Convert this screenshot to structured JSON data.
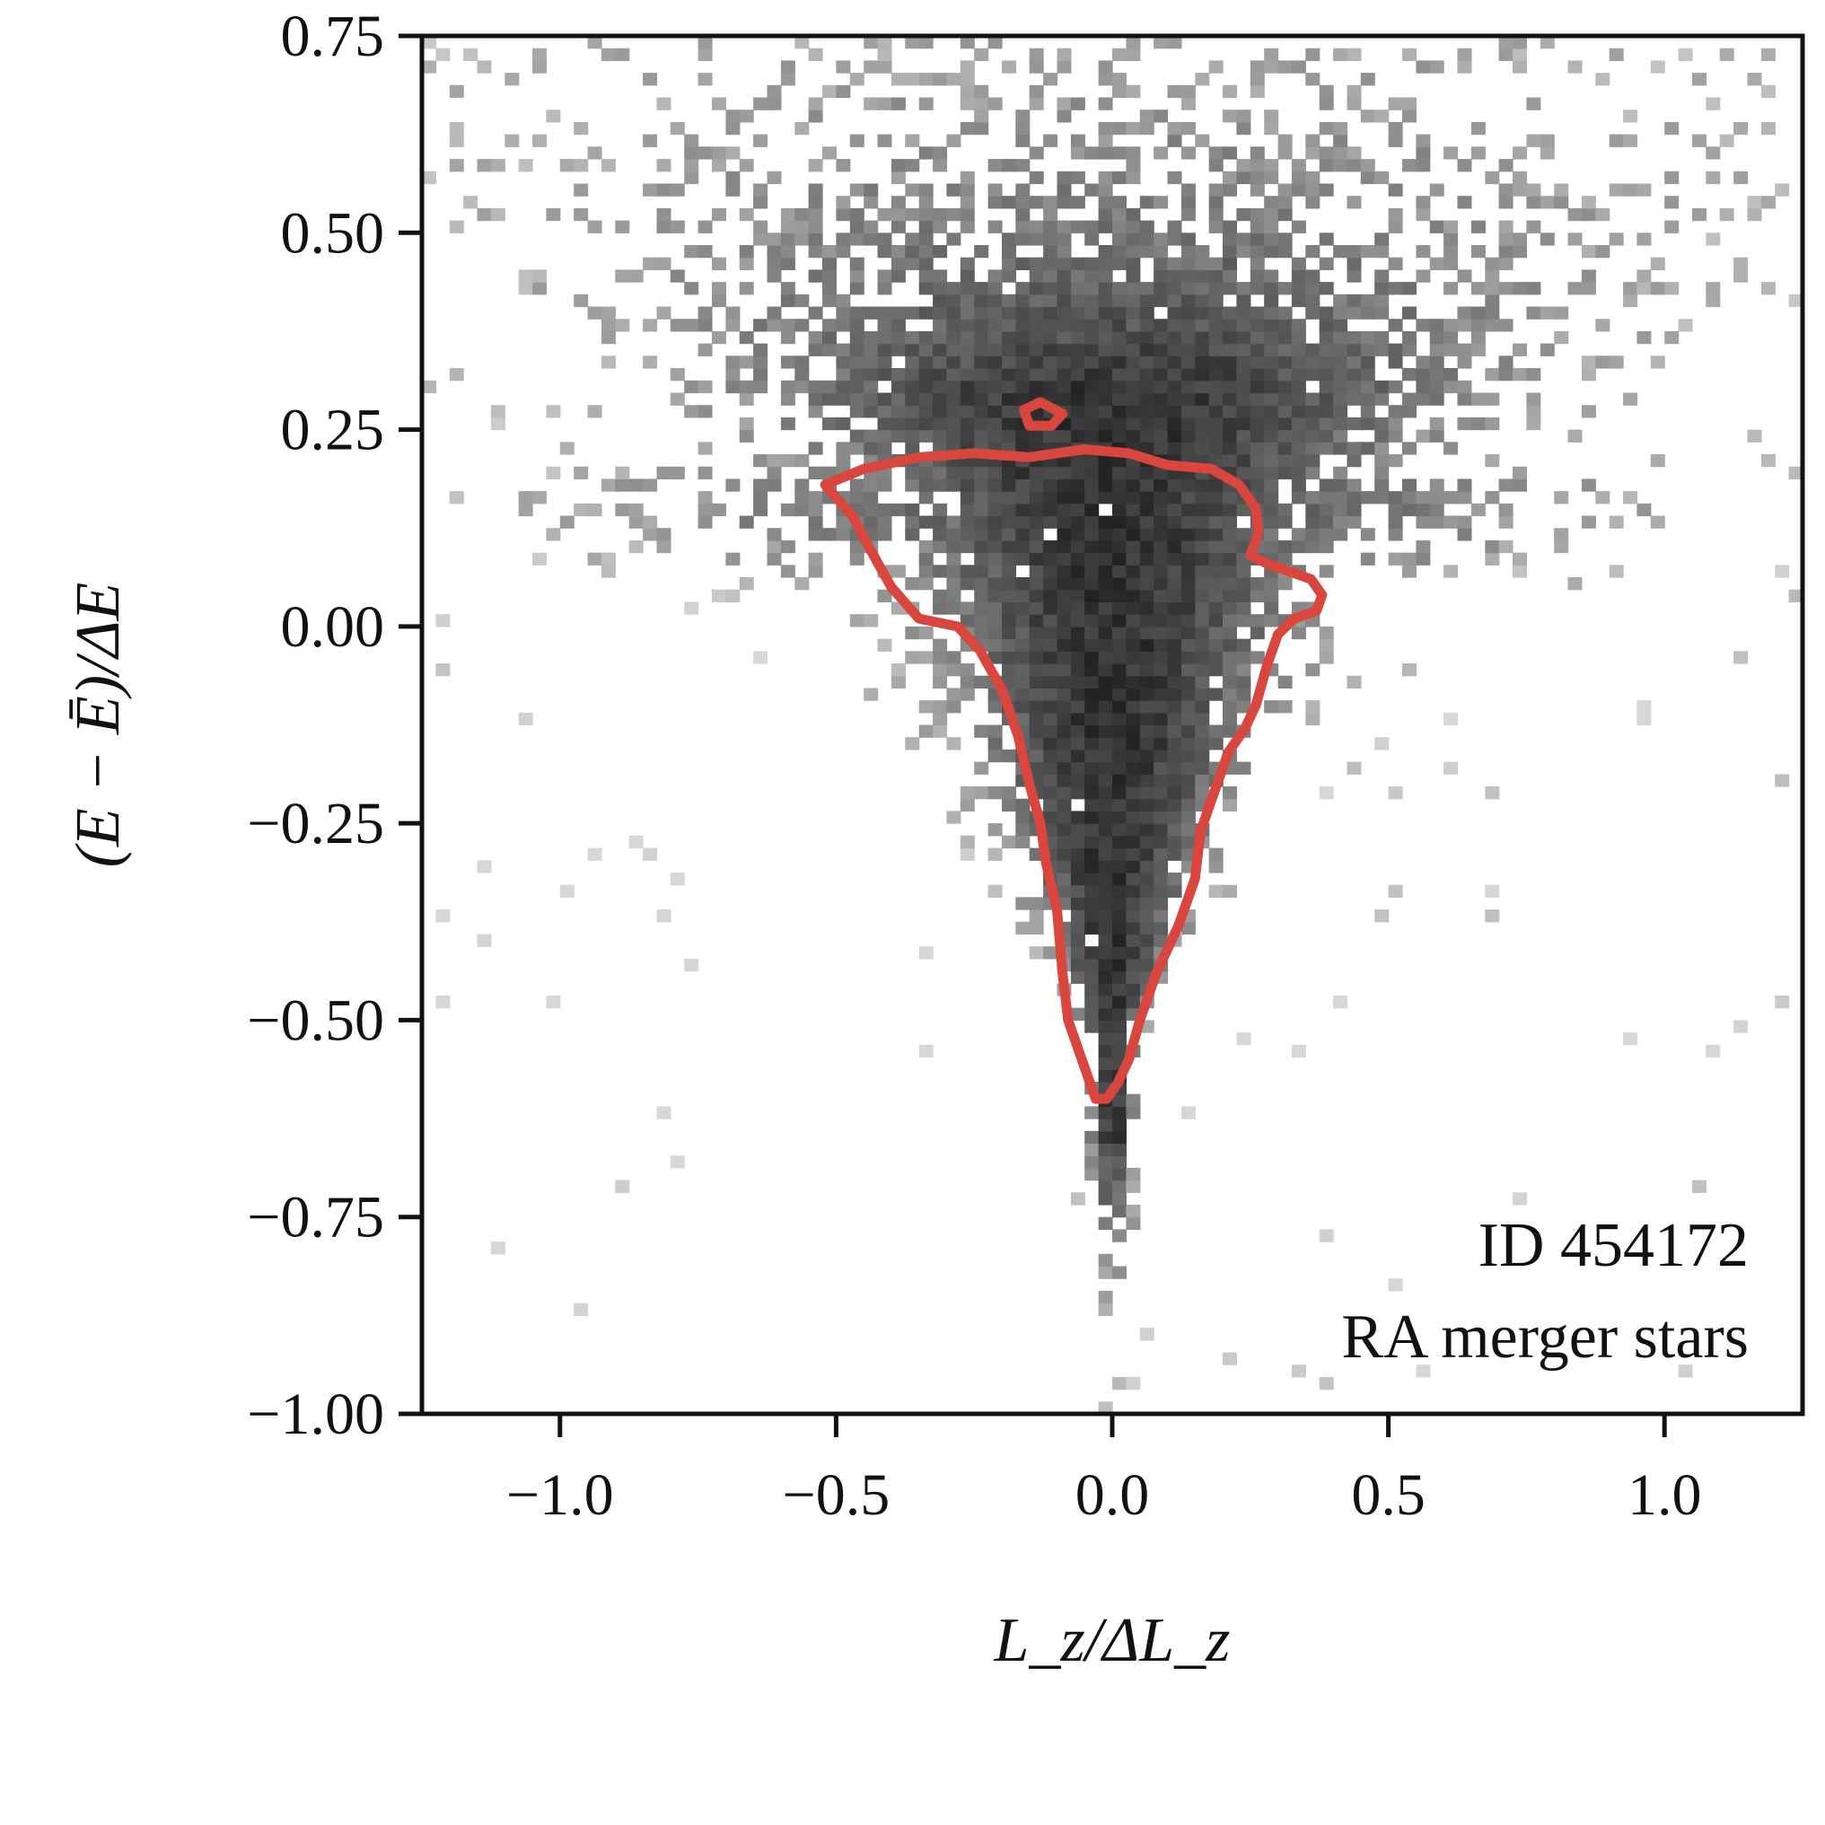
{
  "chart_data": {
    "type": "heatmap",
    "title": "",
    "xlabel": "L_z/ΔL_z",
    "ylabel": "(E − Ē)/ΔE",
    "xlim": [
      -1.25,
      1.25
    ],
    "ylim": [
      -1.0,
      0.75
    ],
    "xticks": [
      -1.0,
      -0.5,
      0.0,
      0.5,
      1.0
    ],
    "xtick_labels": [
      "−1.0",
      "−0.5",
      "0.0",
      "0.5",
      "1.0"
    ],
    "yticks": [
      0.75,
      0.5,
      0.25,
      0.0,
      -0.25,
      -0.5,
      -0.75,
      -1.0
    ],
    "ytick_labels": [
      "0.75",
      "0.50",
      "0.25",
      "0.00",
      "−0.25",
      "−0.50",
      "−0.75",
      "−1.00"
    ],
    "grid": false,
    "colormap": "greys",
    "contour_color": "#d9463e",
    "density_description": "2D histogram of star counts; dense core centred at Lz≈0, E≈−0.1 forming an inverted triangle widening toward higher energy",
    "contour": [
      [
        -0.52,
        0.18
      ],
      [
        -0.45,
        0.2
      ],
      [
        -0.35,
        0.215
      ],
      [
        -0.25,
        0.22
      ],
      [
        -0.15,
        0.215
      ],
      [
        -0.05,
        0.225
      ],
      [
        0.03,
        0.22
      ],
      [
        0.1,
        0.205
      ],
      [
        0.18,
        0.2
      ],
      [
        0.23,
        0.18
      ],
      [
        0.26,
        0.15
      ],
      [
        0.265,
        0.12
      ],
      [
        0.25,
        0.09
      ],
      [
        0.28,
        0.08
      ],
      [
        0.32,
        0.07
      ],
      [
        0.36,
        0.06
      ],
      [
        0.38,
        0.04
      ],
      [
        0.37,
        0.02
      ],
      [
        0.33,
        0.01
      ],
      [
        0.3,
        -0.01
      ],
      [
        0.28,
        -0.05
      ],
      [
        0.26,
        -0.1
      ],
      [
        0.24,
        -0.13
      ],
      [
        0.21,
        -0.16
      ],
      [
        0.19,
        -0.2
      ],
      [
        0.16,
        -0.26
      ],
      [
        0.15,
        -0.32
      ],
      [
        0.12,
        -0.38
      ],
      [
        0.08,
        -0.44
      ],
      [
        0.05,
        -0.5
      ],
      [
        0.03,
        -0.55
      ],
      [
        0.01,
        -0.58
      ],
      [
        -0.01,
        -0.6
      ],
      [
        -0.03,
        -0.6
      ],
      [
        -0.05,
        -0.56
      ],
      [
        -0.08,
        -0.5
      ],
      [
        -0.09,
        -0.44
      ],
      [
        -0.1,
        -0.36
      ],
      [
        -0.12,
        -0.3
      ],
      [
        -0.13,
        -0.25
      ],
      [
        -0.15,
        -0.2
      ],
      [
        -0.17,
        -0.14
      ],
      [
        -0.2,
        -0.08
      ],
      [
        -0.24,
        -0.03
      ],
      [
        -0.28,
        0.0
      ],
      [
        -0.35,
        0.01
      ],
      [
        -0.4,
        0.05
      ],
      [
        -0.44,
        0.1
      ],
      [
        -0.47,
        0.14
      ],
      [
        -0.52,
        0.18
      ]
    ],
    "contour_islands": [
      [
        [
          -0.16,
          0.275
        ],
        [
          -0.13,
          0.285
        ],
        [
          -0.09,
          0.27
        ],
        [
          -0.11,
          0.255
        ],
        [
          -0.15,
          0.255
        ],
        [
          -0.16,
          0.275
        ]
      ]
    ],
    "annotations": [
      "ID 454172",
      "RA merger stars"
    ]
  }
}
